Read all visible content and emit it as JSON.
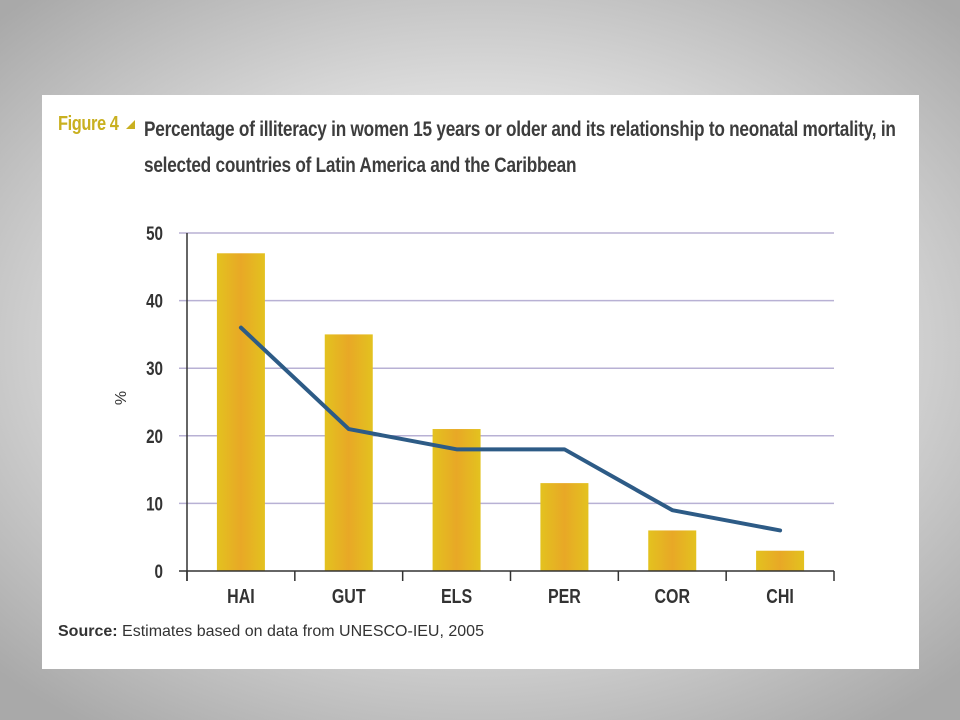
{
  "figure": {
    "label": "Figure 4",
    "title": "Percentage of illiteracy in women 15 years or older and its relationship to neonatal mortality, in selected countries of Latin America and the Caribbean"
  },
  "source": {
    "label": "Source:",
    "text": "Estimates based on data from UNESCO-IEU, 2005"
  },
  "colors": {
    "bar": "#e3c21f",
    "bar_highlight": "#e8a826",
    "line": "#2d5b86",
    "grid": "#b8b1d4",
    "accent": "#c9b020"
  },
  "chart_data": {
    "type": "bar",
    "categories": [
      "HAI",
      "GUT",
      "ELS",
      "PER",
      "COR",
      "CHI"
    ],
    "series": [
      {
        "kind": "bar",
        "values": [
          47,
          35,
          21,
          13,
          6,
          3
        ]
      },
      {
        "kind": "line",
        "values": [
          36,
          21,
          18,
          18,
          9,
          6
        ]
      }
    ],
    "ylabel": "%",
    "xlabel": "",
    "ylim": [
      0,
      50
    ],
    "yticks": [
      0,
      10,
      20,
      30,
      40,
      50
    ],
    "grid": true
  }
}
